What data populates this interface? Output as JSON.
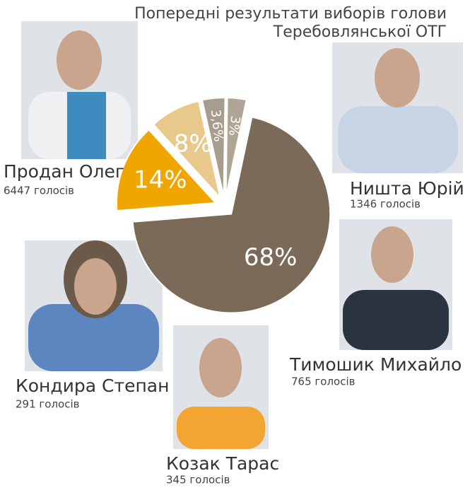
{
  "chart_data": {
    "type": "pie",
    "title": "Попередні результати виборів голови",
    "subtitle": "Теребовлянської ОТГ",
    "categories": [
      "Продан Олег",
      "Ништа Юрій",
      "Тимошик Михайло",
      "Козак Тарас",
      "Кондира Степан"
    ],
    "values": [
      68,
      14,
      8,
      3.6,
      3
    ],
    "value_labels": [
      "68%",
      "14%",
      "8%",
      "3,6%",
      "3%"
    ],
    "vote_labels": [
      "6447 голосів",
      "1346 голосів",
      "765 голосів",
      "345 голосів",
      "291 голосів"
    ],
    "colors": [
      "#7b6a58",
      "#f0a500",
      "#e9c98b",
      "#a89c8c",
      "#b0a595"
    ]
  }
}
